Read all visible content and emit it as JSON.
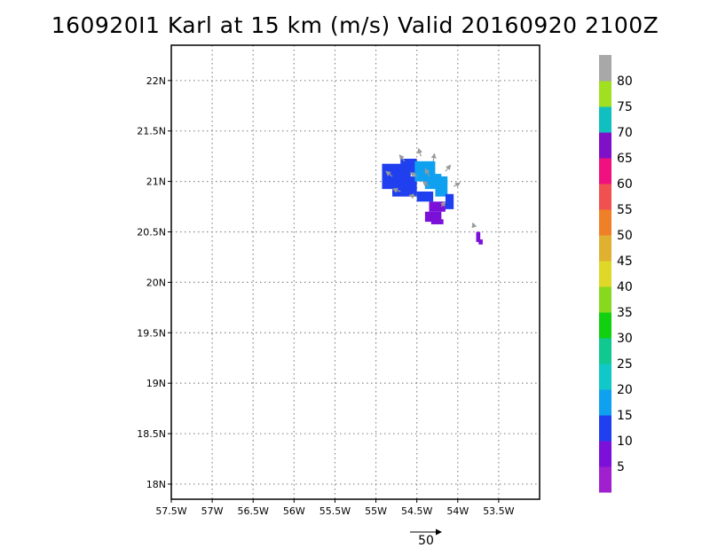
{
  "title": "160920I1 Karl at 15 km (m/s) Valid 20160920 2100Z",
  "map": {
    "lon_range": [
      -57.5,
      -53.0
    ],
    "lat_range": [
      17.85,
      22.35
    ],
    "grid": true,
    "lat_ticks": [
      {
        "value": 22.0,
        "label": "22N"
      },
      {
        "value": 21.5,
        "label": "21.5N"
      },
      {
        "value": 21.0,
        "label": "21N"
      },
      {
        "value": 20.5,
        "label": "20.5N"
      },
      {
        "value": 20.0,
        "label": "20N"
      },
      {
        "value": 19.5,
        "label": "19.5N"
      },
      {
        "value": 19.0,
        "label": "19N"
      },
      {
        "value": 18.5,
        "label": "18.5N"
      },
      {
        "value": 18.0,
        "label": "18N"
      }
    ],
    "lon_ticks": [
      {
        "value": -57.5,
        "label": "57.5W"
      },
      {
        "value": -57.0,
        "label": "57W"
      },
      {
        "value": -56.5,
        "label": "56.5W"
      },
      {
        "value": -56.0,
        "label": "56W"
      },
      {
        "value": -55.5,
        "label": "55.5W"
      },
      {
        "value": -55.0,
        "label": "55W"
      },
      {
        "value": -54.5,
        "label": "54.5W"
      },
      {
        "value": -54.0,
        "label": "54W"
      },
      {
        "value": -53.5,
        "label": "53.5W"
      }
    ]
  },
  "wind_patches": [
    {
      "lon": -54.75,
      "lat": 21.05,
      "w": 0.35,
      "h": 0.25,
      "value": 12
    },
    {
      "lon": -54.65,
      "lat": 20.95,
      "w": 0.3,
      "h": 0.2,
      "value": 10
    },
    {
      "lon": -54.6,
      "lat": 21.15,
      "w": 0.2,
      "h": 0.15,
      "value": 14
    },
    {
      "lon": -54.4,
      "lat": 21.1,
      "w": 0.25,
      "h": 0.2,
      "value": 18
    },
    {
      "lon": -54.3,
      "lat": 21.0,
      "w": 0.2,
      "h": 0.15,
      "value": 19
    },
    {
      "lon": -54.2,
      "lat": 20.95,
      "w": 0.15,
      "h": 0.2,
      "value": 16
    },
    {
      "lon": -54.4,
      "lat": 20.85,
      "w": 0.2,
      "h": 0.1,
      "value": 10
    },
    {
      "lon": -54.25,
      "lat": 20.75,
      "w": 0.2,
      "h": 0.1,
      "value": 8
    },
    {
      "lon": -54.1,
      "lat": 20.8,
      "w": 0.1,
      "h": 0.15,
      "value": 14
    },
    {
      "lon": -54.3,
      "lat": 20.65,
      "w": 0.2,
      "h": 0.1,
      "value": 6
    },
    {
      "lon": -54.25,
      "lat": 20.6,
      "w": 0.15,
      "h": 0.05,
      "value": 6
    },
    {
      "lon": -53.75,
      "lat": 20.45,
      "w": 0.05,
      "h": 0.1,
      "value": 5
    },
    {
      "lon": -53.72,
      "lat": 20.4,
      "w": 0.05,
      "h": 0.05,
      "value": 5
    }
  ],
  "vectors": [
    {
      "lon": -54.8,
      "lat": 21.05,
      "u": -10,
      "v": 8
    },
    {
      "lon": -54.65,
      "lat": 21.2,
      "u": -8,
      "v": 10
    },
    {
      "lon": -54.45,
      "lat": 21.25,
      "u": -4,
      "v": 12
    },
    {
      "lon": -54.3,
      "lat": 21.2,
      "u": 2,
      "v": 12
    },
    {
      "lon": -54.15,
      "lat": 21.1,
      "u": 8,
      "v": 10
    },
    {
      "lon": -54.05,
      "lat": 20.95,
      "u": 10,
      "v": 6
    },
    {
      "lon": -54.7,
      "lat": 20.9,
      "u": -12,
      "v": 4
    },
    {
      "lon": -54.5,
      "lat": 20.85,
      "u": -12,
      "v": 2
    },
    {
      "lon": -54.35,
      "lat": 20.95,
      "u": -10,
      "v": 8
    },
    {
      "lon": -54.2,
      "lat": 20.75,
      "u": 6,
      "v": 8
    },
    {
      "lon": -54.35,
      "lat": 21.05,
      "u": -6,
      "v": 12
    },
    {
      "lon": -54.5,
      "lat": 21.05,
      "u": -10,
      "v": 6
    },
    {
      "lon": -53.8,
      "lat": 20.55,
      "u": -2,
      "v": 6
    }
  ],
  "colorbar": {
    "colors": [
      "#a020d0",
      "#7b10d8",
      "#2040f0",
      "#10a0f0",
      "#10c8c8",
      "#10c890",
      "#10d010",
      "#88d820",
      "#e0d828",
      "#e0b030",
      "#f08028",
      "#f05050",
      "#f01080",
      "#8010c8",
      "#10c0c0",
      "#a0e020",
      "#a8a8a8"
    ],
    "labels": [
      "5",
      "10",
      "15",
      "20",
      "25",
      "30",
      "35",
      "40",
      "45",
      "50",
      "55",
      "60",
      "65",
      "70",
      "75",
      "80"
    ]
  },
  "reference_vector": {
    "label": "50"
  }
}
